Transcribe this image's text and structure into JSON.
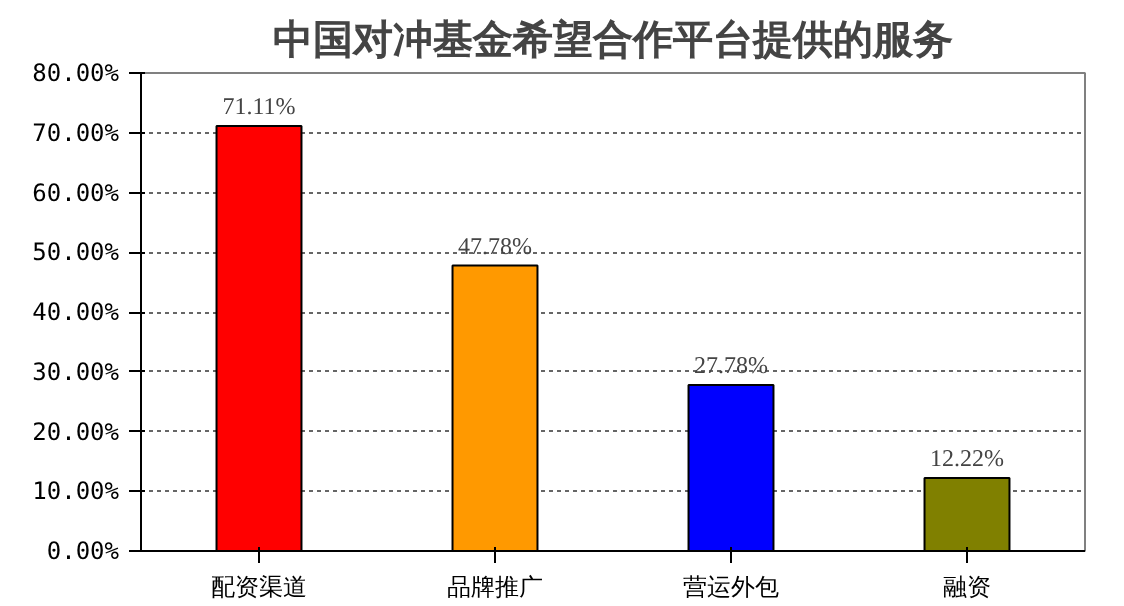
{
  "chart_data": {
    "type": "bar",
    "title": "中国对冲基金希望合作平台提供的服务",
    "categories": [
      "配资渠道",
      "品牌推广",
      "营运外包",
      "融资"
    ],
    "values": [
      71.11,
      47.78,
      27.78,
      12.22
    ],
    "colors": [
      "#ff0000",
      "#ff9900",
      "#0000ff",
      "#808000"
    ],
    "value_labels": [
      "71.11%",
      "47.78%",
      "27.78%",
      "12.22%"
    ],
    "ylim": [
      0,
      80
    ],
    "yticks": [
      {
        "value": 0,
        "label": "0.00%"
      },
      {
        "value": 10,
        "label": "10.00%"
      },
      {
        "value": 20,
        "label": "20.00%"
      },
      {
        "value": 30,
        "label": "30.00%"
      },
      {
        "value": 40,
        "label": "40.00%"
      },
      {
        "value": 50,
        "label": "50.00%"
      },
      {
        "value": 60,
        "label": "60.00%"
      },
      {
        "value": 70,
        "label": "70.00%"
      },
      {
        "value": 80,
        "label": "80.00%"
      }
    ],
    "grid": "y"
  }
}
